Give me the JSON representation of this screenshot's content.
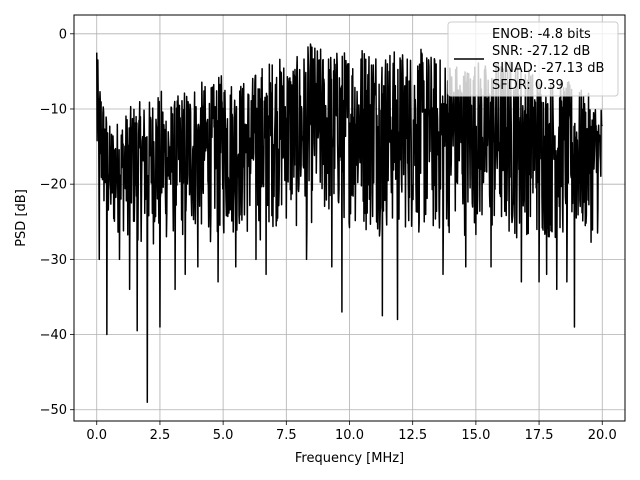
{
  "chart_data": {
    "type": "line",
    "title": "",
    "xlabel": "Frequency [MHz]",
    "ylabel": "PSD [dB]",
    "xlim": [
      -0.9,
      20.9
    ],
    "ylim": [
      -51.5,
      2.5
    ],
    "grid": true,
    "legend_position": "top-right",
    "x_ticks": [
      0.0,
      2.5,
      5.0,
      7.5,
      10.0,
      12.5,
      15.0,
      17.5,
      20.0
    ],
    "x_tick_labels": [
      "0.0",
      "2.5",
      "5.0",
      "7.5",
      "10.0",
      "12.5",
      "15.0",
      "17.5",
      "20.0"
    ],
    "y_ticks": [
      0,
      -10,
      -20,
      -30,
      -40,
      -50
    ],
    "y_tick_labels": [
      "0",
      "−10",
      "−20",
      "−30",
      "−40",
      "−50"
    ],
    "legend": {
      "line_color": "#000000",
      "lines": [
        "ENOB: -4.8 bits",
        "SNR: -27.12 dB",
        "SINAD: -27.13 dB",
        "SFDR: 0.39"
      ]
    },
    "series": [
      {
        "color": "#000000",
        "x_start": 0.0,
        "x_end": 20.0,
        "upper_envelope": [
          [
            0.0,
            -2.5
          ],
          [
            0.3,
            -9
          ],
          [
            0.5,
            -12
          ],
          [
            1.0,
            -11
          ],
          [
            1.5,
            -9
          ],
          [
            2.0,
            -9
          ],
          [
            2.5,
            -7
          ],
          [
            3.0,
            -9
          ],
          [
            3.5,
            -7
          ],
          [
            4.0,
            -6
          ],
          [
            4.5,
            -7
          ],
          [
            5.0,
            -5
          ],
          [
            5.5,
            -6
          ],
          [
            6.0,
            -6
          ],
          [
            6.5,
            -4
          ],
          [
            7.0,
            -3
          ],
          [
            7.5,
            -3
          ],
          [
            8.0,
            -3
          ],
          [
            8.5,
            -1
          ],
          [
            9.0,
            -2
          ],
          [
            9.5,
            -2
          ],
          [
            10.0,
            -2
          ],
          [
            10.5,
            -1
          ],
          [
            11.0,
            -1
          ],
          [
            11.5,
            -2
          ],
          [
            12.0,
            -2
          ],
          [
            12.5,
            -2
          ],
          [
            13.0,
            -2
          ],
          [
            13.5,
            -3
          ],
          [
            14.0,
            -3
          ],
          [
            14.5,
            -4
          ],
          [
            15.0,
            -3
          ],
          [
            15.5,
            -4
          ],
          [
            16.0,
            -3
          ],
          [
            16.5,
            -3
          ],
          [
            17.0,
            -4
          ],
          [
            17.5,
            -5
          ],
          [
            18.0,
            -6
          ],
          [
            18.5,
            -6
          ],
          [
            19.0,
            -7
          ],
          [
            19.5,
            -8
          ],
          [
            20.0,
            -9
          ]
        ],
        "lower_envelope": [
          [
            0.0,
            -22
          ],
          [
            0.5,
            -28
          ],
          [
            1.0,
            -27
          ],
          [
            1.5,
            -28
          ],
          [
            2.0,
            -28
          ],
          [
            2.5,
            -29
          ],
          [
            3.0,
            -28
          ],
          [
            3.5,
            -28
          ],
          [
            4.0,
            -27
          ],
          [
            4.5,
            -28
          ],
          [
            5.0,
            -28
          ],
          [
            5.5,
            -27
          ],
          [
            6.0,
            -28
          ],
          [
            6.5,
            -28
          ],
          [
            7.0,
            -26
          ],
          [
            7.5,
            -26
          ],
          [
            8.0,
            -27
          ],
          [
            8.5,
            -26
          ],
          [
            9.0,
            -26
          ],
          [
            9.5,
            -26
          ],
          [
            10.0,
            -26
          ],
          [
            10.5,
            -27
          ],
          [
            11.0,
            -27
          ],
          [
            11.5,
            -27
          ],
          [
            12.0,
            -27
          ],
          [
            12.5,
            -27
          ],
          [
            13.0,
            -28
          ],
          [
            13.5,
            -28
          ],
          [
            14.0,
            -27
          ],
          [
            14.5,
            -27
          ],
          [
            15.0,
            -27
          ],
          [
            15.5,
            -28
          ],
          [
            16.0,
            -28
          ],
          [
            16.5,
            -28
          ],
          [
            17.0,
            -27
          ],
          [
            17.5,
            -28
          ],
          [
            18.0,
            -28
          ],
          [
            18.5,
            -28
          ],
          [
            19.0,
            -28
          ],
          [
            19.5,
            -28
          ],
          [
            20.0,
            -27
          ]
        ],
        "spikes_down": [
          [
            0.1,
            -30
          ],
          [
            0.4,
            -40
          ],
          [
            0.9,
            -30
          ],
          [
            1.3,
            -34
          ],
          [
            1.6,
            -39.5
          ],
          [
            2.0,
            -49
          ],
          [
            2.5,
            -39
          ],
          [
            3.1,
            -34
          ],
          [
            3.5,
            -32
          ],
          [
            4.0,
            -31
          ],
          [
            4.8,
            -33
          ],
          [
            5.5,
            -31
          ],
          [
            6.3,
            -30
          ],
          [
            6.7,
            -32
          ],
          [
            8.3,
            -30
          ],
          [
            9.3,
            -31
          ],
          [
            9.7,
            -37
          ],
          [
            11.3,
            -37.5
          ],
          [
            11.9,
            -38
          ],
          [
            13.7,
            -32
          ],
          [
            14.6,
            -31
          ],
          [
            15.6,
            -31
          ],
          [
            16.8,
            -33
          ],
          [
            17.5,
            -33
          ],
          [
            17.8,
            -32
          ],
          [
            18.2,
            -34
          ],
          [
            18.6,
            -33
          ],
          [
            18.9,
            -39
          ]
        ]
      }
    ]
  }
}
